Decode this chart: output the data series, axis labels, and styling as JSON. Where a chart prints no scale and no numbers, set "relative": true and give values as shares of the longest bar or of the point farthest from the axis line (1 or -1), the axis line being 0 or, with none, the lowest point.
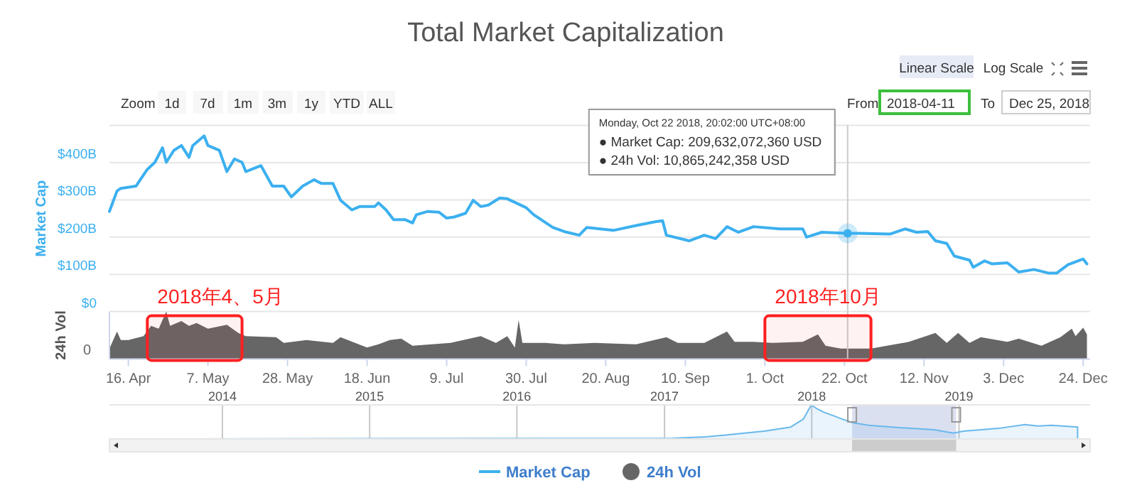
{
  "chart_data": [
    {
      "type": "line",
      "title": "Total Market Capitalization",
      "ylabel": "Market Cap",
      "xlim": [
        "2018-04-11",
        "2018-12-25T20:00"
      ],
      "ylim": [
        0,
        500
      ],
      "yticks": [
        {
          "value": 0,
          "label": "$0"
        },
        {
          "value": 100,
          "label": "$100B"
        },
        {
          "value": 200,
          "label": "$200B"
        },
        {
          "value": 300,
          "label": "$300B"
        },
        {
          "value": 400,
          "label": "$400B"
        },
        {
          "value": 500,
          "label": null
        }
      ],
      "grid": "y",
      "tick_labels": "y",
      "legend": "bottom",
      "ref_lines": [
        {
          "axis": "x",
          "value": "2018-10-22T20:02",
          "color": "#cccccc"
        }
      ],
      "annotations": [
        "Monday, Oct 22 2018, 20:02:00 UTC+08:00\n● Market Cap: 209,632,072,360 USD\n● 24h Vol: 10,865,242,358 USD",
        "Zoom",
        "1d",
        "7d",
        "1m",
        "3m",
        "1y",
        "YTD",
        "ALL",
        "From",
        "2018-04-11",
        "To",
        "Dec 25, 2018",
        "Linear Scale",
        "Log Scale"
      ],
      "series": [
        {
          "name": "Market Cap",
          "color": "#3cb0ef",
          "x": [
            "2018-04-11",
            "2018-04-13",
            "2018-04-14",
            "2018-04-18",
            "2018-04-21",
            "2018-04-23",
            "2018-04-25",
            "2018-04-26",
            "2018-04-28",
            "2018-04-30",
            "2018-05-02",
            "2018-05-03",
            "2018-05-06",
            "2018-05-07",
            "2018-05-10",
            "2018-05-12",
            "2018-05-14",
            "2018-05-16",
            "2018-05-17",
            "2018-05-21",
            "2018-05-24",
            "2018-05-27",
            "2018-05-29",
            "2018-06-01",
            "2018-06-04",
            "2018-06-06",
            "2018-06-09",
            "2018-06-11",
            "2018-06-14",
            "2018-06-16",
            "2018-06-20",
            "2018-06-21",
            "2018-06-23",
            "2018-06-25",
            "2018-06-28",
            "2018-06-30",
            "2018-07-01",
            "2018-07-04",
            "2018-07-07",
            "2018-07-09",
            "2018-07-11",
            "2018-07-14",
            "2018-07-16",
            "2018-07-18",
            "2018-07-20",
            "2018-07-23",
            "2018-07-25",
            "2018-07-30",
            "2018-08-01",
            "2018-08-06",
            "2018-08-09",
            "2018-08-13",
            "2018-08-15",
            "2018-08-22",
            "2018-08-28",
            "2018-09-02",
            "2018-09-04",
            "2018-09-05",
            "2018-09-11",
            "2018-09-15",
            "2018-09-18",
            "2018-09-21",
            "2018-09-24",
            "2018-09-28",
            "2018-10-05",
            "2018-10-11",
            "2018-10-12",
            "2018-10-16",
            "2018-10-22T20:02",
            "2018-10-26",
            "2018-11-03",
            "2018-11-07",
            "2018-11-10",
            "2018-11-13",
            "2018-11-15",
            "2018-11-18",
            "2018-11-20",
            "2018-11-24",
            "2018-11-25",
            "2018-11-28",
            "2018-11-30",
            "2018-12-04",
            "2018-12-07",
            "2018-12-11",
            "2018-12-15",
            "2018-12-17",
            "2018-12-20",
            "2018-12-24",
            "2018-12-25"
          ],
          "values": [
            269,
            324,
            331,
            337,
            382,
            401,
            440,
            401,
            433,
            446,
            414,
            446,
            472,
            446,
            433,
            376,
            410,
            401,
            376,
            392,
            337,
            337,
            308,
            337,
            354,
            344,
            344,
            299,
            273,
            282,
            282,
            292,
            273,
            247,
            247,
            238,
            260,
            269,
            267,
            251,
            254,
            264,
            299,
            282,
            286,
            305,
            303,
            279,
            260,
            226,
            215,
            205,
            226,
            218,
            231,
            241,
            244,
            205,
            190,
            205,
            196,
            228,
            213,
            228,
            222,
            222,
            200,
            213,
            210,
            210,
            208,
            222,
            213,
            215,
            190,
            183,
            149,
            138,
            119,
            136,
            128,
            131,
            106,
            113,
            103,
            103,
            126,
            141,
            128
          ]
        }
      ]
    },
    {
      "type": "area",
      "relative": true,
      "ylabel": "24h Vol",
      "xlim": [
        "2018-04-11",
        "2018-12-25T20:00"
      ],
      "tick_labels": "x",
      "legend": "bottom",
      "xticks": [
        {
          "value": "2018-04-16",
          "label": "16. Apr"
        },
        {
          "value": "2018-05-07",
          "label": "7. May"
        },
        {
          "value": "2018-05-28",
          "label": "28. May"
        },
        {
          "value": "2018-06-18",
          "label": "18. Jun"
        },
        {
          "value": "2018-07-09",
          "label": "9. Jul"
        },
        {
          "value": "2018-07-30",
          "label": "30. Jul"
        },
        {
          "value": "2018-08-20",
          "label": "20. Aug"
        },
        {
          "value": "2018-09-10",
          "label": "10. Sep"
        },
        {
          "value": "2018-10-01",
          "label": "1. Oct"
        },
        {
          "value": "2018-10-22",
          "label": "22. Oct"
        },
        {
          "value": "2018-11-12",
          "label": "12. Nov"
        },
        {
          "value": "2018-12-03",
          "label": "3. Dec"
        },
        {
          "value": "2018-12-24",
          "label": "24. Dec"
        }
      ],
      "ref_lines": [
        {
          "axis": "x",
          "value": "2018-10-22T20:02",
          "color": "#cccccc"
        }
      ],
      "bands": [
        {
          "axis": "x",
          "from": "2018-04-21",
          "to": "2018-05-16",
          "label": "2018年4、5月",
          "color": "#ff2020"
        },
        {
          "axis": "x",
          "from": "2018-10-01",
          "to": "2018-10-29",
          "label": "2018年10月",
          "color": "#ff2020"
        }
      ],
      "annotations": [
        "0"
      ],
      "series": [
        {
          "name": "24h Vol",
          "color": "#666666",
          "x": [
            "2018-04-11",
            "2018-04-13",
            "2018-04-14",
            "2018-04-16",
            "2018-04-20",
            "2018-04-22",
            "2018-04-24",
            "2018-04-26",
            "2018-04-27",
            "2018-04-30",
            "2018-05-02",
            "2018-05-04",
            "2018-05-07",
            "2018-05-12",
            "2018-05-15",
            "2018-05-17",
            "2018-05-25",
            "2018-05-27",
            "2018-06-02",
            "2018-06-09",
            "2018-06-11",
            "2018-06-18",
            "2018-06-21",
            "2018-06-24",
            "2018-06-27",
            "2018-06-30",
            "2018-07-10",
            "2018-07-18",
            "2018-07-22",
            "2018-07-25",
            "2018-07-27",
            "2018-07-28",
            "2018-07-29",
            "2018-08-04",
            "2018-08-09",
            "2018-08-17",
            "2018-08-28",
            "2018-09-05",
            "2018-09-08",
            "2018-09-15",
            "2018-09-21",
            "2018-09-23",
            "2018-09-28",
            "2018-10-03",
            "2018-10-11",
            "2018-10-15",
            "2018-10-17",
            "2018-10-21",
            "2018-10-29",
            "2018-11-08",
            "2018-11-15",
            "2018-11-18",
            "2018-11-21",
            "2018-11-24",
            "2018-11-27",
            "2018-12-04",
            "2018-12-07",
            "2018-12-13",
            "2018-12-18",
            "2018-12-21",
            "2018-12-22",
            "2018-12-24",
            "2018-12-25"
          ],
          "values": [
            0.22,
            0.58,
            0.4,
            0.4,
            0.48,
            0.7,
            0.64,
            1,
            0.7,
            0.8,
            0.7,
            0.76,
            0.64,
            0.72,
            0.55,
            0.48,
            0.46,
            0.34,
            0.4,
            0.34,
            0.46,
            0.24,
            0.31,
            0.4,
            0.43,
            0.28,
            0.34,
            0.48,
            0.34,
            0.48,
            0.24,
            0.82,
            0.34,
            0.34,
            0.31,
            0.34,
            0.31,
            0.46,
            0.34,
            0.34,
            0.58,
            0.36,
            0.36,
            0.34,
            0.36,
            0.52,
            0.28,
            0.22,
            0.22,
            0.36,
            0.55,
            0.34,
            0.55,
            0.34,
            0.46,
            0.36,
            0.43,
            0.28,
            0.46,
            0.64,
            0.48,
            0.66,
            0.52
          ]
        }
      ]
    },
    {
      "type": "area",
      "relative": true,
      "xlim": [
        "2013-03-27",
        "2019-11-22"
      ],
      "tick_labels": "x",
      "grid": "x",
      "xticks": [
        {
          "value": "2014-01-01",
          "label": "2014"
        },
        {
          "value": "2015-01-01",
          "label": "2015"
        },
        {
          "value": "2016-01-01",
          "label": "2016"
        },
        {
          "value": "2017-01-01",
          "label": "2017"
        },
        {
          "value": "2018-01-01",
          "label": "2018"
        },
        {
          "value": "2019-01-01",
          "label": "2019"
        }
      ],
      "bands": [
        {
          "axis": "x",
          "from": "2018-04-11",
          "to": "2018-12-25",
          "color": "#ccd3ea"
        }
      ],
      "series": [
        {
          "color": "#6ab8ec",
          "x": [
            "2013-04-28",
            "2017-01-22",
            "2017-04-13",
            "2017-07-01",
            "2017-09-05",
            "2017-11-10",
            "2017-12-11",
            "2017-12-31",
            "2018-01-12",
            "2018-01-30",
            "2018-02-22",
            "2018-03-18",
            "2018-04-12",
            "2018-05-22",
            "2018-08-11",
            "2018-10-31",
            "2018-12-18",
            "2019-01-12",
            "2019-04-09",
            "2019-06-13",
            "2019-07-16",
            "2019-08-18",
            "2019-10-22"
          ],
          "values": [
            0,
            0.02,
            0.06,
            0.15,
            0.23,
            0.35,
            0.58,
            1,
            0.9,
            0.79,
            0.69,
            0.58,
            0.48,
            0.4,
            0.33,
            0.27,
            0.17,
            0.23,
            0.31,
            0.42,
            0.38,
            0.4,
            0.35
          ]
        }
      ]
    }
  ]
}
